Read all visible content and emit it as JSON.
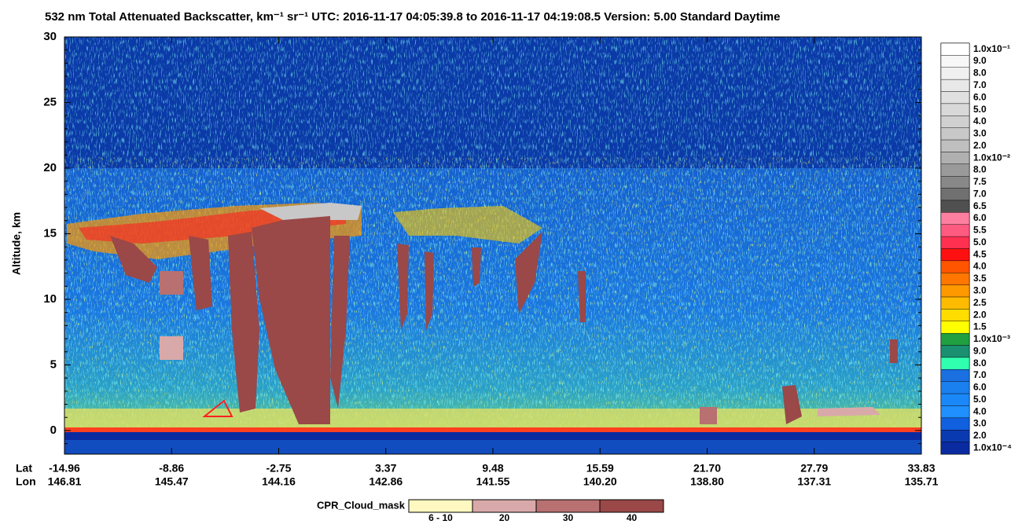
{
  "chart_data": {
    "type": "curtain",
    "title": "532 nm Total Attenuated Backscatter, km⁻¹ sr⁻¹    UTC:  2016-11-17 04:05:39.8  to  2016-11-17 04:19:08.5    Version: 5.00  Standard  Daytime",
    "ylabel": "Altitude, km",
    "ylim": [
      -1.8,
      30
    ],
    "yticks": [
      0,
      5,
      10,
      15,
      20,
      25,
      30
    ],
    "xrows": [
      {
        "name": "Lat",
        "labels": [
          "-14.96",
          "-8.86",
          "-2.75",
          "3.37",
          "9.48",
          "15.59",
          "21.70",
          "27.79",
          "33.83"
        ]
      },
      {
        "name": "Lon",
        "labels": [
          "146.81",
          "145.47",
          "144.16",
          "142.86",
          "141.55",
          "140.20",
          "138.80",
          "137.31",
          "135.71"
        ]
      }
    ],
    "colorbar": {
      "labels": [
        "1.0x10⁻¹",
        "9.0",
        "8.0",
        "7.0",
        "6.0",
        "5.0",
        "4.0",
        "3.0",
        "2.0",
        "1.0x10⁻²",
        "8.0",
        "7.5",
        "7.0",
        "6.5",
        "6.0",
        "5.5",
        "5.0",
        "4.5",
        "4.0",
        "3.5",
        "3.0",
        "2.5",
        "2.0",
        "1.5",
        "1.0x10⁻³",
        "9.0",
        "8.0",
        "7.0",
        "6.0",
        "5.0",
        "4.0",
        "3.0",
        "2.0",
        "1.0x10⁻⁴"
      ],
      "colors": [
        "#ffffff",
        "#f7f7f7",
        "#f0f0f0",
        "#e8e8e8",
        "#e0e0e0",
        "#d8d8d8",
        "#d0d0d0",
        "#c8c8c8",
        "#bfbfbf",
        "#b0b0b0",
        "#9a9a9a",
        "#888888",
        "#707070",
        "#505050",
        "#ff7fa0",
        "#ff5a80",
        "#ff3050",
        "#ff1010",
        "#ff5500",
        "#ff7700",
        "#ff9900",
        "#ffbb00",
        "#ffdd00",
        "#ffff00",
        "#20a040",
        "#1a9070",
        "#30ffb0",
        "#1a70e0",
        "#1a80f0",
        "#1a88f8",
        "#2090ff",
        "#1060e0",
        "#0a3ab0",
        "#0a2aa0"
      ]
    },
    "mask_legend": {
      "title": "CPR_Cloud_mask",
      "categories": [
        "6 - 10",
        "20",
        "30",
        "40"
      ],
      "colors": [
        "#fff8c0",
        "#d9a9a9",
        "#b87070",
        "#9a4848"
      ]
    }
  }
}
